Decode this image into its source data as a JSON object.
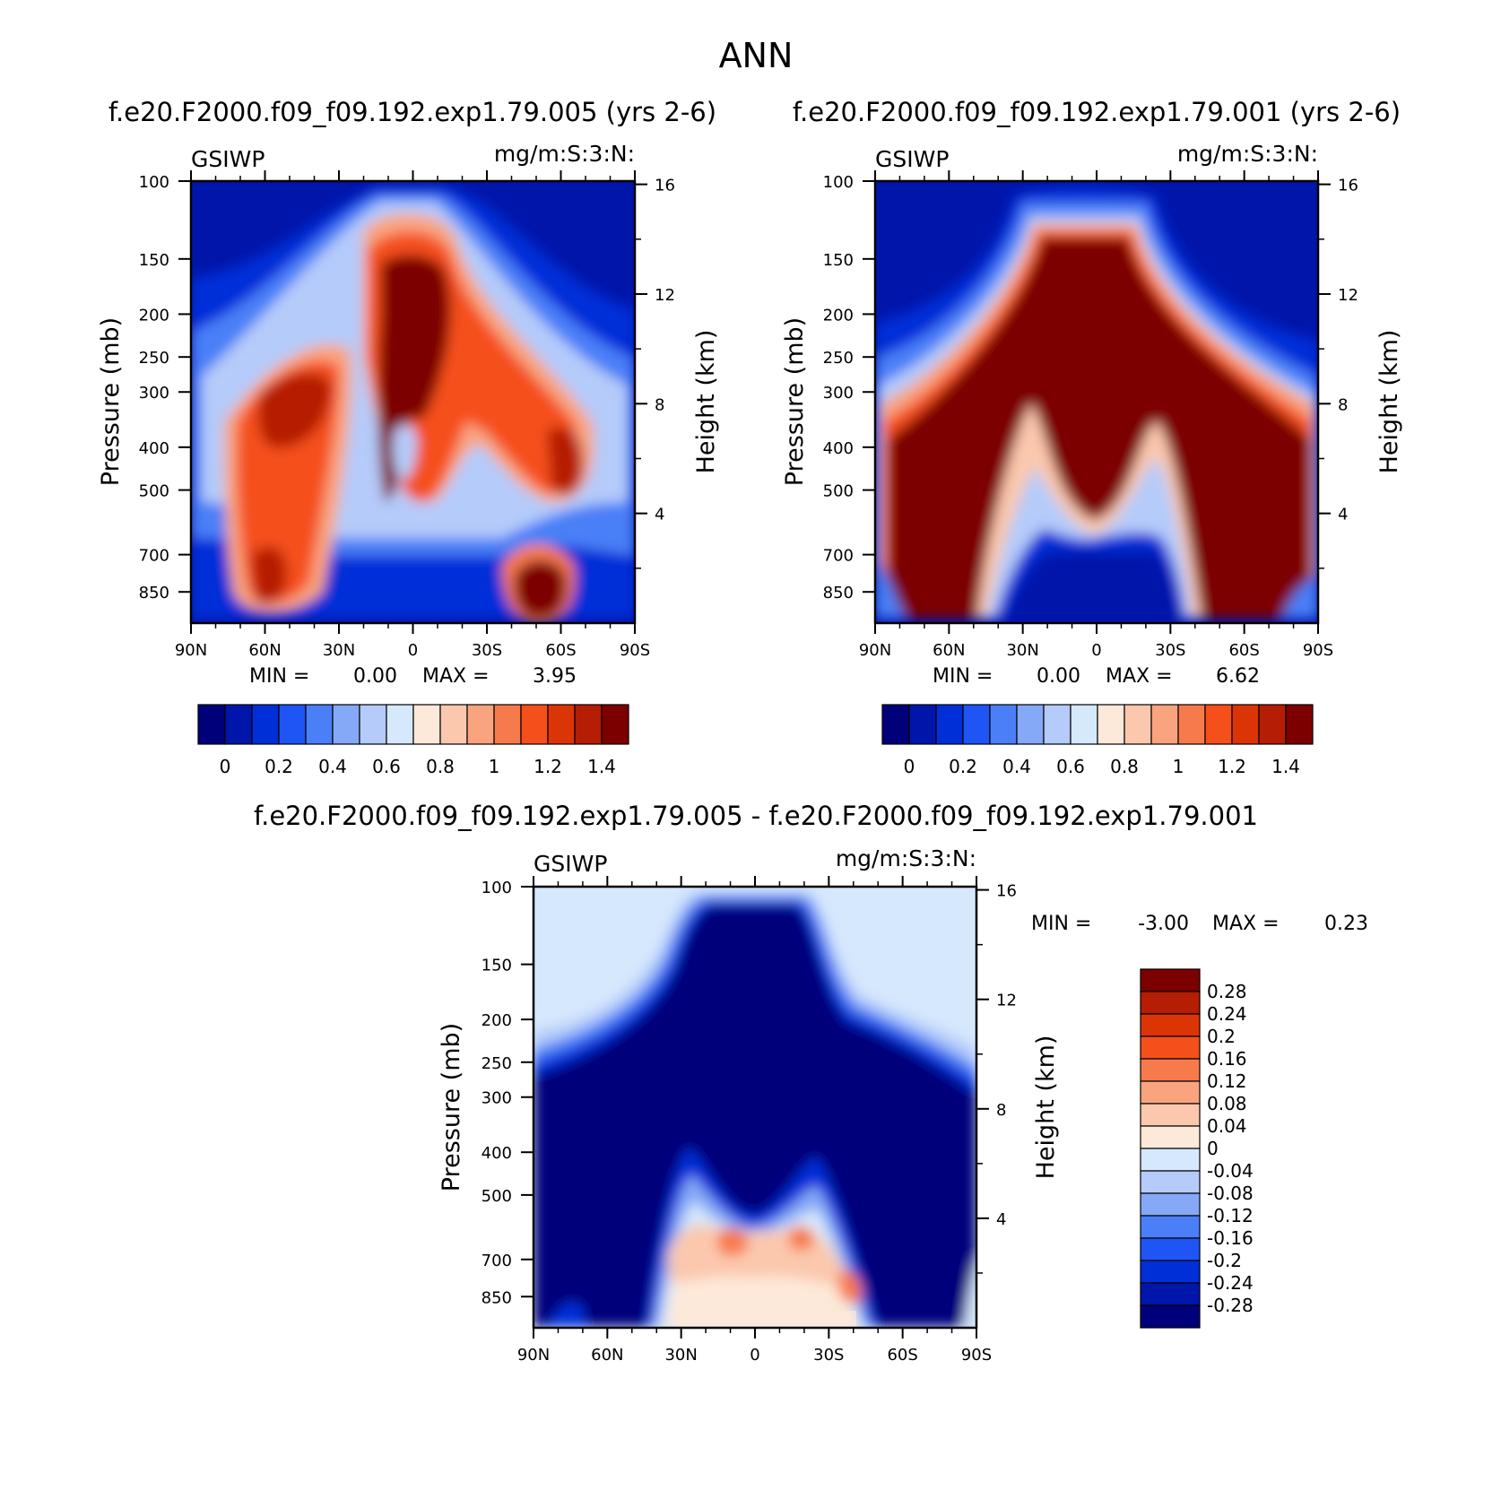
{
  "title": "ANN",
  "panels": [
    {
      "id": "test",
      "title": "f.e20.F2000.f09_f09.192.exp1.79.005 (yrs 2-6)",
      "variable": "GSIWP",
      "units": "mg/m:S:3:N:",
      "ylabel": "Pressure (mb)",
      "ylabel_right": "Height (km)",
      "min_label": "MIN =",
      "min_value": "0.00",
      "max_label": "MAX =",
      "max_value": "3.95",
      "x_ticks": [
        "90N",
        "60N",
        "30N",
        "0",
        "30S",
        "60S",
        "90S"
      ],
      "y_ticks": [
        "100",
        "150",
        "200",
        "250",
        "300",
        "400",
        "500",
        "700",
        "850"
      ],
      "y_ticks_right": [
        "16",
        "12",
        "8",
        "4"
      ],
      "colorbar_labels": [
        "0",
        "0.2",
        "0.4",
        "0.6",
        "0.8",
        "1",
        "1.2",
        "1.4"
      ]
    },
    {
      "id": "control",
      "title": "f.e20.F2000.f09_f09.192.exp1.79.001 (yrs 2-6)",
      "variable": "GSIWP",
      "units": "mg/m:S:3:N:",
      "ylabel": "Pressure (mb)",
      "ylabel_right": "Height (km)",
      "min_label": "MIN =",
      "min_value": "0.00",
      "max_label": "MAX =",
      "max_value": "6.62",
      "x_ticks": [
        "90N",
        "60N",
        "30N",
        "0",
        "30S",
        "60S",
        "90S"
      ],
      "y_ticks": [
        "100",
        "150",
        "200",
        "250",
        "300",
        "400",
        "500",
        "700",
        "850"
      ],
      "y_ticks_right": [
        "16",
        "12",
        "8",
        "4"
      ],
      "colorbar_labels": [
        "0",
        "0.2",
        "0.4",
        "0.6",
        "0.8",
        "1",
        "1.2",
        "1.4"
      ]
    },
    {
      "id": "difference",
      "title": "f.e20.F2000.f09_f09.192.exp1.79.005 - f.e20.F2000.f09_f09.192.exp1.79.001",
      "variable": "GSIWP",
      "units": "mg/m:S:3:N:",
      "ylabel": "Pressure (mb)",
      "ylabel_right": "Height (km)",
      "min_label": "MIN =",
      "min_value": "-3.00",
      "max_label": "MAX =",
      "max_value": "0.23",
      "x_ticks": [
        "90N",
        "60N",
        "30N",
        "0",
        "30S",
        "60S",
        "90S"
      ],
      "y_ticks": [
        "100",
        "150",
        "200",
        "250",
        "300",
        "400",
        "500",
        "700",
        "850"
      ],
      "y_ticks_right": [
        "16",
        "12",
        "8",
        "4"
      ],
      "colorbar_labels": [
        "0.28",
        "0.24",
        "0.2",
        "0.16",
        "0.12",
        "0.08",
        "0.04",
        "0",
        "-0.04",
        "-0.08",
        "-0.12",
        "-0.16",
        "-0.2",
        "-0.24",
        "-0.28"
      ]
    }
  ],
  "colors": {
    "levels_abs": [
      "#00007a",
      "#0016aa",
      "#002fd8",
      "#1f55f5",
      "#4a7ff7",
      "#85a8f7",
      "#b5cbfa",
      "#d6e8fc",
      "#fde9d9",
      "#fbc8ad",
      "#f9a47f",
      "#f77a4c",
      "#f5501c",
      "#dc3505",
      "#b51d04",
      "#7d0000"
    ],
    "levels_diff": [
      "#00007a",
      "#0016aa",
      "#002fd8",
      "#1f55f5",
      "#4a7ff7",
      "#85a8f7",
      "#b5cbfa",
      "#d6e8fc",
      "#fde9d9",
      "#fbc8ad",
      "#f9a47f",
      "#f77a4c",
      "#f5501c",
      "#dc3505",
      "#b51d04",
      "#7d0000"
    ]
  },
  "chart_data": [
    {
      "type": "heatmap",
      "panel": "test",
      "title": "f.e20.F2000.f09_f09.192.exp1.79.005 (yrs 2-6)",
      "xlabel": "",
      "ylabel": "Pressure (mb)",
      "y2label": "Height (km)",
      "x_range": [
        "90N",
        "90S"
      ],
      "y_range": [
        100,
        1000
      ],
      "y_scale": "log",
      "levels": [
        0,
        0.1,
        0.2,
        0.3,
        0.4,
        0.5,
        0.6,
        0.7,
        0.8,
        0.9,
        1.0,
        1.1,
        1.2,
        1.3,
        1.4
      ],
      "min": 0.0,
      "max": 3.95,
      "features": [
        {
          "x": 0,
          "y": 250,
          "value": 2.5
        },
        {
          "x": 65,
          "y": 400,
          "value": 1.3
        },
        {
          "x": 70,
          "y": 720,
          "value": 1.45
        },
        {
          "x": -50,
          "y": 800,
          "value": 1.45
        },
        {
          "x": -60,
          "y": 420,
          "value": 1.2
        }
      ]
    },
    {
      "type": "heatmap",
      "panel": "control",
      "title": "f.e20.F2000.f09_f09.192.exp1.79.001 (yrs 2-6)",
      "xlabel": "",
      "ylabel": "Pressure (mb)",
      "y2label": "Height (km)",
      "x_range": [
        "90N",
        "90S"
      ],
      "y_range": [
        100,
        1000
      ],
      "y_scale": "log",
      "levels": [
        0,
        0.1,
        0.2,
        0.3,
        0.4,
        0.5,
        0.6,
        0.7,
        0.8,
        0.9,
        1.0,
        1.1,
        1.2,
        1.3,
        1.4
      ],
      "min": 0.0,
      "max": 6.62,
      "features": [
        {
          "x": 0,
          "y": 300,
          "value": 3.0
        },
        {
          "x": 60,
          "y": 500,
          "value": 2.5
        },
        {
          "x": -60,
          "y": 500,
          "value": 2.5
        }
      ]
    },
    {
      "type": "heatmap",
      "panel": "difference",
      "title": "f.e20.F2000.f09_f09.192.exp1.79.005 - f.e20.F2000.f09_f09.192.exp1.79.001",
      "xlabel": "",
      "ylabel": "Pressure (mb)",
      "y2label": "Height (km)",
      "x_range": [
        "90N",
        "90S"
      ],
      "y_range": [
        100,
        1000
      ],
      "y_scale": "log",
      "levels": [
        -0.28,
        -0.24,
        -0.2,
        -0.16,
        -0.12,
        -0.08,
        -0.04,
        0,
        0.04,
        0.08,
        0.12,
        0.16,
        0.2,
        0.24,
        0.28
      ],
      "min": -3.0,
      "max": 0.23,
      "features": [
        {
          "x": 0,
          "y": 300,
          "value": -3.0
        },
        {
          "x": 0,
          "y": 720,
          "value": 0.04
        },
        {
          "x": 10,
          "y": 600,
          "value": 0.2
        },
        {
          "x": -40,
          "y": 780,
          "value": 0.2
        }
      ]
    }
  ]
}
